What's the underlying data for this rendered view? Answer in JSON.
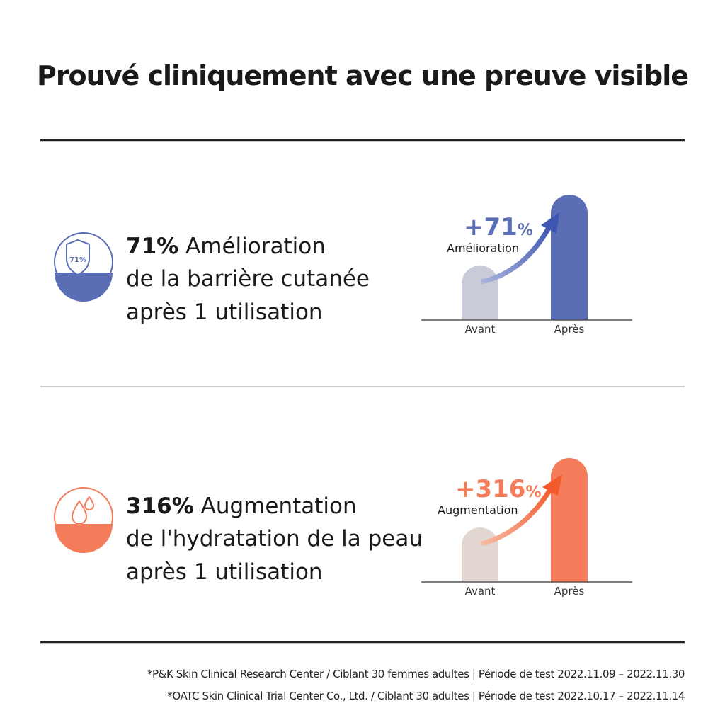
{
  "header": {
    "title": "Prouvé cliniquement avec une preuve visible"
  },
  "sections": [
    {
      "icon_label": "71%",
      "highlight": "71%",
      "headline": "Amélioration",
      "lines": [
        "de la barrière cutanée",
        "après 1 utilisation"
      ],
      "chart": {
        "change": "+71",
        "unit": "%",
        "label": "Amélioration",
        "categories": [
          "Avant",
          "Après"
        ]
      }
    },
    {
      "highlight": "316%",
      "headline": "Augmentation",
      "lines": [
        "de l'hydratation de la peau",
        "après 1 utilisation"
      ],
      "chart": {
        "change": "+316",
        "unit": "%",
        "label": "Augmentation",
        "categories": [
          "Avant",
          "Après"
        ]
      }
    }
  ],
  "footnotes": [
    "*P&K Skin Clinical Research Center / Ciblant 30 femmes adultes  |  Période de test 2022.11.09 – 2022.11.30",
    "*OATC Skin Clinical Trial Center Co., Ltd. / Ciblant 30 adultes  |  Période de test 2022.10.17 – 2022.11.14"
  ]
}
